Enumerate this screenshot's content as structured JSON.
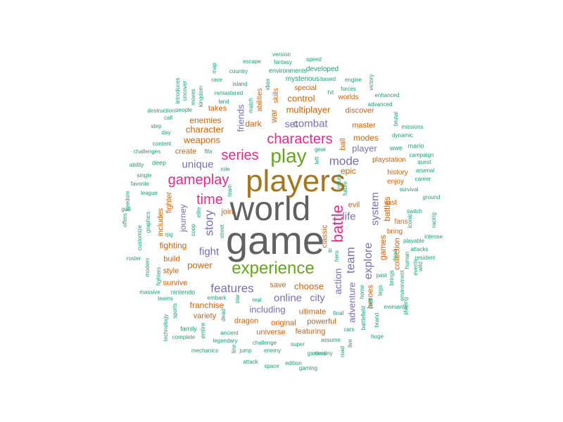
{
  "colors": {
    "gray": "#616161",
    "brown": "#a6761d",
    "green": "#66a61e",
    "pink": "#e7298a",
    "purple": "#7570b3",
    "orange": "#d95f02",
    "teal": "#1b9e77"
  },
  "words": [
    {
      "text": "game",
      "color": "gray"
    },
    {
      "text": "world",
      "color": "gray"
    },
    {
      "text": "players",
      "color": "brown"
    },
    {
      "text": "play",
      "color": "green"
    },
    {
      "text": "experience",
      "color": "green"
    },
    {
      "text": "characters",
      "color": "pink"
    },
    {
      "text": "gameplay",
      "color": "pink"
    },
    {
      "text": "battle",
      "color": "pink"
    },
    {
      "text": "series",
      "color": "pink"
    },
    {
      "text": "time",
      "color": "pink"
    },
    {
      "text": "mode",
      "color": "purple"
    },
    {
      "text": "features",
      "color": "purple"
    },
    {
      "text": "team",
      "color": "purple"
    },
    {
      "text": "story",
      "color": "purple"
    },
    {
      "text": "combat",
      "color": "purple"
    },
    {
      "text": "explore",
      "color": "purple"
    },
    {
      "text": "fight",
      "color": "purple"
    },
    {
      "text": "life",
      "color": "purple"
    },
    {
      "text": "system",
      "color": "purple"
    },
    {
      "text": "online",
      "color": "purple"
    },
    {
      "text": "action",
      "color": "purple"
    },
    {
      "text": "unique",
      "color": "purple"
    },
    {
      "text": "city",
      "color": "purple"
    },
    {
      "text": "including",
      "color": "purple"
    },
    {
      "text": "adventure",
      "color": "purple"
    },
    {
      "text": "friends",
      "color": "purple"
    },
    {
      "text": "set",
      "color": "purple"
    },
    {
      "text": "player",
      "color": "purple"
    },
    {
      "text": "journey",
      "color": "purple"
    },
    {
      "text": "multiplayer",
      "color": "orange"
    },
    {
      "text": "character",
      "color": "orange"
    },
    {
      "text": "enemies",
      "color": "orange"
    },
    {
      "text": "weapons",
      "color": "orange"
    },
    {
      "text": "power",
      "color": "orange"
    },
    {
      "text": "choose",
      "color": "orange"
    },
    {
      "text": "control",
      "color": "orange"
    },
    {
      "text": "franchise",
      "color": "orange"
    },
    {
      "text": "games",
      "color": "orange"
    },
    {
      "text": "epic",
      "color": "orange"
    },
    {
      "text": "modes",
      "color": "orange"
    },
    {
      "text": "battles",
      "color": "orange"
    },
    {
      "text": "war",
      "color": "orange"
    },
    {
      "text": "dark",
      "color": "orange"
    },
    {
      "text": "takes",
      "color": "orange"
    },
    {
      "text": "create",
      "color": "orange"
    },
    {
      "text": "fighting",
      "color": "orange"
    },
    {
      "text": "build",
      "color": "orange"
    },
    {
      "text": "style",
      "color": "orange"
    },
    {
      "text": "survive",
      "color": "orange"
    },
    {
      "text": "variety",
      "color": "orange"
    },
    {
      "text": "dragon",
      "color": "orange"
    },
    {
      "text": "universe",
      "color": "orange"
    },
    {
      "text": "featuring",
      "color": "orange"
    },
    {
      "text": "original",
      "color": "orange"
    },
    {
      "text": "ultimate",
      "color": "orange"
    },
    {
      "text": "powerful",
      "color": "orange"
    },
    {
      "text": "save",
      "color": "orange"
    },
    {
      "text": "heroes",
      "color": "orange"
    },
    {
      "text": "classic",
      "color": "orange"
    },
    {
      "text": "master",
      "color": "orange"
    },
    {
      "text": "discover",
      "color": "orange"
    },
    {
      "text": "ball",
      "color": "orange"
    },
    {
      "text": "evil",
      "color": "orange"
    },
    {
      "text": "join",
      "color": "orange"
    },
    {
      "text": "playstation",
      "color": "orange"
    },
    {
      "text": "history",
      "color": "orange"
    },
    {
      "text": "enjoy",
      "color": "orange"
    },
    {
      "text": "vast",
      "color": "orange"
    },
    {
      "text": "fans",
      "color": "orange"
    },
    {
      "text": "bring",
      "color": "orange"
    },
    {
      "text": "collection",
      "color": "orange"
    },
    {
      "text": "fighter",
      "color": "orange"
    },
    {
      "text": "includes",
      "color": "orange"
    },
    {
      "text": "abilities",
      "color": "orange"
    },
    {
      "text": "skills",
      "color": "orange"
    },
    {
      "text": "special",
      "color": "orange"
    },
    {
      "text": "worlds",
      "color": "orange"
    },
    {
      "text": "mysterious",
      "color": "teal"
    },
    {
      "text": "developed",
      "color": "teal"
    },
    {
      "text": "environments",
      "color": "teal"
    },
    {
      "text": "escape",
      "color": "teal"
    },
    {
      "text": "fantasy",
      "color": "teal"
    },
    {
      "text": "version",
      "color": "teal"
    },
    {
      "text": "speed",
      "color": "teal"
    },
    {
      "text": "based",
      "color": "teal"
    },
    {
      "text": "country",
      "color": "teal"
    },
    {
      "text": "race",
      "color": "teal"
    },
    {
      "text": "island",
      "color": "teal"
    },
    {
      "text": "map",
      "color": "teal"
    },
    {
      "text": "remastered",
      "color": "teal"
    },
    {
      "text": "land",
      "color": "teal"
    },
    {
      "text": "match",
      "color": "teal"
    },
    {
      "text": "xbox",
      "color": "teal"
    },
    {
      "text": "hit",
      "color": "teal"
    },
    {
      "text": "forces",
      "color": "teal"
    },
    {
      "text": "engine",
      "color": "teal"
    },
    {
      "text": "victory",
      "color": "teal"
    },
    {
      "text": "enhanced",
      "color": "teal"
    },
    {
      "text": "advanced",
      "color": "teal"
    },
    {
      "text": "brutal",
      "color": "teal"
    },
    {
      "text": "missions",
      "color": "teal"
    },
    {
      "text": "dynamic",
      "color": "teal"
    },
    {
      "text": "mario",
      "color": "teal"
    },
    {
      "text": "campaign",
      "color": "teal"
    },
    {
      "text": "wwe",
      "color": "teal"
    },
    {
      "text": "quest",
      "color": "teal"
    },
    {
      "text": "arsenal",
      "color": "teal"
    },
    {
      "text": "career",
      "color": "teal"
    },
    {
      "text": "survival",
      "color": "teal"
    },
    {
      "text": "ground",
      "color": "teal"
    },
    {
      "text": "switch",
      "color": "teal"
    },
    {
      "text": "iconic",
      "color": "teal"
    },
    {
      "text": "racing",
      "color": "teal"
    },
    {
      "text": "playable",
      "color": "teal"
    },
    {
      "text": "attacks",
      "color": "teal"
    },
    {
      "text": "resident",
      "color": "teal"
    },
    {
      "text": "intense",
      "color": "teal"
    },
    {
      "text": "wild",
      "color": "teal"
    },
    {
      "text": "human",
      "color": "teal"
    },
    {
      "text": "events",
      "color": "teal"
    },
    {
      "text": "brings",
      "color": "teal"
    },
    {
      "text": "environment",
      "color": "teal"
    },
    {
      "text": "moments",
      "color": "teal"
    },
    {
      "text": "playing",
      "color": "teal"
    },
    {
      "text": "lead",
      "color": "teal"
    },
    {
      "text": "past",
      "color": "teal"
    },
    {
      "text": "lego",
      "color": "teal"
    },
    {
      "text": "huge",
      "color": "teal"
    },
    {
      "text": "brand",
      "color": "teal"
    },
    {
      "text": "battlefield",
      "color": "teal"
    },
    {
      "text": "home",
      "color": "teal"
    },
    {
      "text": "path",
      "color": "teal"
    },
    {
      "text": "live",
      "color": "teal"
    },
    {
      "text": "cars",
      "color": "teal"
    },
    {
      "text": "final",
      "color": "teal"
    },
    {
      "text": "road",
      "color": "teal"
    },
    {
      "text": "assume",
      "color": "teal"
    },
    {
      "text": "destiny",
      "color": "teal"
    },
    {
      "text": "super",
      "color": "teal"
    },
    {
      "text": "gamers",
      "color": "teal"
    },
    {
      "text": "edition",
      "color": "teal"
    },
    {
      "text": "gaming",
      "color": "teal"
    },
    {
      "text": "space",
      "color": "teal"
    },
    {
      "text": "attack",
      "color": "teal"
    },
    {
      "text": "jump",
      "color": "teal"
    },
    {
      "text": "enemy",
      "color": "teal"
    },
    {
      "text": "challenge",
      "color": "teal"
    },
    {
      "text": "line",
      "color": "teal"
    },
    {
      "text": "legendary",
      "color": "teal"
    },
    {
      "text": "mechanics",
      "color": "teal"
    },
    {
      "text": "ancient",
      "color": "teal"
    },
    {
      "text": "entire",
      "color": "teal"
    },
    {
      "text": "complete",
      "color": "teal"
    },
    {
      "text": "family",
      "color": "teal"
    },
    {
      "text": "technology",
      "color": "teal"
    },
    {
      "text": "sports",
      "color": "teal"
    },
    {
      "text": "teams",
      "color": "teal"
    },
    {
      "text": "massive",
      "color": "teal"
    },
    {
      "text": "nintendo",
      "color": "teal"
    },
    {
      "text": "fighters",
      "color": "teal"
    },
    {
      "text": "modern",
      "color": "teal"
    },
    {
      "text": "roster",
      "color": "teal"
    },
    {
      "text": "customize",
      "color": "teal"
    },
    {
      "text": "offers",
      "color": "teal"
    },
    {
      "text": "god",
      "color": "teal"
    },
    {
      "text": "graphics",
      "color": "teal"
    },
    {
      "text": "freedom",
      "color": "teal"
    },
    {
      "text": "rpg",
      "color": "teal"
    },
    {
      "text": "league",
      "color": "teal"
    },
    {
      "text": "favorite",
      "color": "teal"
    },
    {
      "text": "single",
      "color": "teal"
    },
    {
      "text": "ability",
      "color": "teal"
    },
    {
      "text": "deep",
      "color": "teal"
    },
    {
      "text": "challenges",
      "color": "teal"
    },
    {
      "text": "content",
      "color": "teal"
    },
    {
      "text": "day",
      "color": "teal"
    },
    {
      "text": "step",
      "color": "teal"
    },
    {
      "text": "call",
      "color": "teal"
    },
    {
      "text": "destruction",
      "color": "teal"
    },
    {
      "text": "people",
      "color": "teal"
    },
    {
      "text": "introduces",
      "color": "teal"
    },
    {
      "text": "uncover",
      "color": "teal"
    },
    {
      "text": "moves",
      "color": "teal"
    },
    {
      "text": "kingdom",
      "color": "teal"
    },
    {
      "text": "fifa",
      "color": "teal"
    },
    {
      "text": "role",
      "color": "teal"
    },
    {
      "text": "coop",
      "color": "teal"
    },
    {
      "text": "elite",
      "color": "teal"
    },
    {
      "text": "street",
      "color": "teal"
    },
    {
      "text": "team",
      "color": "teal"
    },
    {
      "text": "gear",
      "color": "teal"
    },
    {
      "text": "left",
      "color": "teal"
    },
    {
      "text": "return",
      "color": "teal"
    },
    {
      "text": "future",
      "color": "teal"
    },
    {
      "text": "hero",
      "color": "teal"
    },
    {
      "text": "iii",
      "color": "teal"
    },
    {
      "text": "real",
      "color": "teal"
    },
    {
      "text": "star",
      "color": "teal"
    },
    {
      "text": "dead",
      "color": "teal"
    },
    {
      "text": "embark",
      "color": "teal"
    }
  ]
}
